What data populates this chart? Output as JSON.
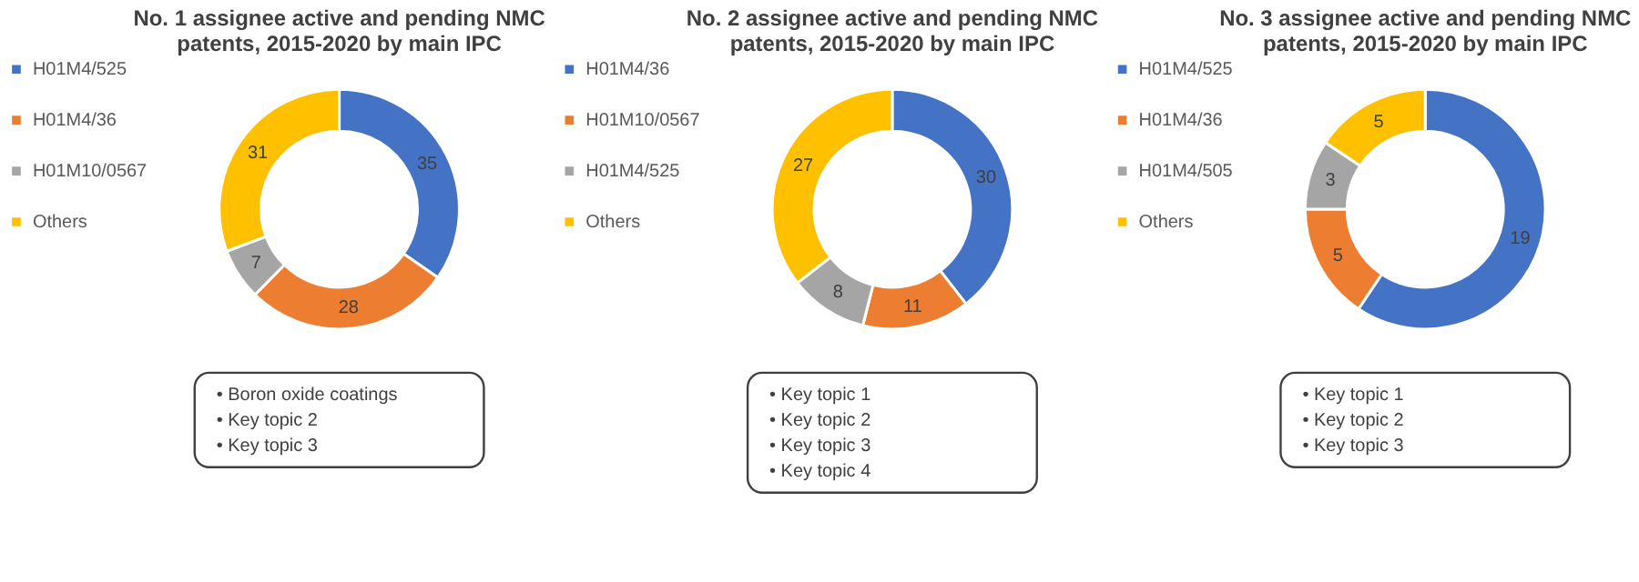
{
  "chart_data": [
    {
      "type": "donut",
      "title": "No. 1 assignee active and pending NMC patents, 2015-2020 by main IPC",
      "categories": [
        "H01M4/525",
        "H01M4/36",
        "H01M10/0567",
        "Others"
      ],
      "values": [
        35,
        28,
        7,
        31
      ],
      "colors": [
        "#4472c4",
        "#ed7d31",
        "#a5a5a5",
        "#ffc000"
      ],
      "data_labels": true,
      "legend": "left",
      "annotations": [
        "• Boron oxide coatings",
        "• Key topic 2",
        "• Key topic 3"
      ]
    },
    {
      "type": "donut",
      "title": "No. 2 assignee active and pending NMC patents, 2015-2020 by main IPC",
      "categories": [
        "H01M4/36",
        "H01M10/0567",
        "H01M4/525",
        "Others"
      ],
      "values": [
        30,
        11,
        8,
        27
      ],
      "colors": [
        "#4472c4",
        "#ed7d31",
        "#a5a5a5",
        "#ffc000"
      ],
      "data_labels": true,
      "legend": "left",
      "annotations": [
        "• Key topic 1",
        "• Key topic 2",
        "• Key topic 3",
        "• Key topic 4"
      ]
    },
    {
      "type": "donut",
      "title": "No. 3 assignee active and pending NMC patents, 2015-2020 by main IPC",
      "categories": [
        "H01M4/525",
        "H01M4/36",
        "H01M4/505",
        "Others"
      ],
      "values": [
        19,
        5,
        3,
        5
      ],
      "colors": [
        "#4472c4",
        "#ed7d31",
        "#a5a5a5",
        "#ffc000"
      ],
      "data_labels": true,
      "legend": "left",
      "annotations": [
        "• Key topic 1",
        "• Key topic 2",
        "• Key topic 3"
      ]
    }
  ]
}
